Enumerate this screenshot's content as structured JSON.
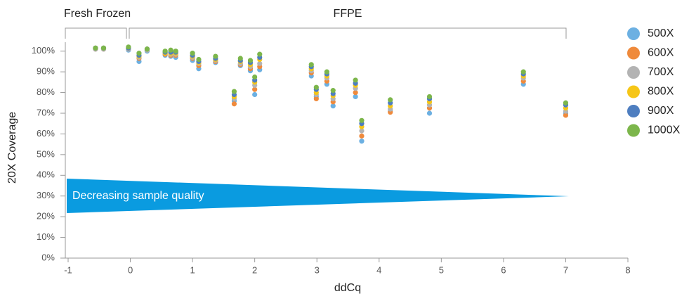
{
  "chart_data": {
    "type": "scatter",
    "xlabel": "ddCq",
    "ylabel": "20X Coverage",
    "annotations": [
      "Fresh Frozen",
      "FFPE",
      "Decreasing sample quality"
    ],
    "x": [
      -0.56,
      -0.43,
      -0.03,
      0.14,
      0.27,
      0.56,
      0.65,
      0.73,
      1.0,
      1.1,
      1.37,
      1.67,
      1.77,
      1.93,
      2.0,
      2.08,
      2.91,
      2.99,
      3.16,
      3.26,
      3.62,
      3.72,
      4.18,
      4.81,
      6.32,
      7.0
    ],
    "series": [
      {
        "name": "500X",
        "color": "#6cb0e2",
        "values": [
          101,
          101,
          100.5,
          95,
          100,
          98,
          97.5,
          97,
          95.5,
          91.5,
          94.5,
          76,
          93,
          90.5,
          79,
          91,
          88,
          78,
          84,
          73.5,
          78,
          56.5,
          71,
          70,
          84,
          70
        ]
      },
      {
        "name": "600X",
        "color": "#ef8a3c",
        "values": [
          101,
          101,
          101,
          96.5,
          100.5,
          98.5,
          98,
          98,
          96.5,
          93,
          95,
          74.5,
          93.5,
          91.5,
          81.5,
          92.5,
          89.5,
          77,
          85.5,
          75.5,
          80,
          59,
          70.5,
          72.5,
          85.5,
          69
        ]
      },
      {
        "name": "700X",
        "color": "#b3b3b3",
        "values": [
          101,
          101,
          101,
          97,
          100.5,
          99,
          98.5,
          98.5,
          97,
          94,
          95.5,
          77,
          94,
          92.5,
          83.5,
          94,
          90.5,
          79,
          87,
          77,
          82,
          61.5,
          72,
          74,
          87,
          71
        ]
      },
      {
        "name": "800X",
        "color": "#f6c617",
        "values": [
          101.5,
          101.5,
          101.5,
          97.5,
          101,
          99,
          99,
          99,
          97.5,
          94.5,
          96,
          78,
          95,
          93.5,
          85,
          96,
          91.5,
          80,
          88,
          78.5,
          83.5,
          63.5,
          73.5,
          75.5,
          88,
          72.5
        ]
      },
      {
        "name": "900X",
        "color": "#4e7ec0",
        "values": [
          101.5,
          101.5,
          101.5,
          98,
          101,
          99.5,
          99.5,
          99.5,
          98,
          95,
          96.5,
          79,
          95.5,
          94.5,
          86,
          97,
          92.5,
          81.5,
          89,
          79.5,
          84.5,
          65,
          75,
          77,
          89,
          74
        ]
      },
      {
        "name": "1000X",
        "color": "#7cb64b",
        "values": [
          101.5,
          101.5,
          102,
          99,
          101,
          100,
          100.5,
          100,
          99,
          96,
          97.5,
          80.5,
          96.5,
          95.5,
          87.5,
          98.5,
          93.5,
          82.5,
          90,
          81,
          86,
          66.5,
          76.5,
          78,
          90,
          75
        ]
      }
    ],
    "xlim": [
      -1,
      8
    ],
    "xticks": [
      -1,
      0,
      1,
      2,
      3,
      4,
      5,
      6,
      7,
      8
    ],
    "ylim": [
      0,
      105
    ],
    "yticks": [
      {
        "value": 0,
        "label": "0%"
      },
      {
        "value": 10,
        "label": "10%"
      },
      {
        "value": 20,
        "label": "20%"
      },
      {
        "value": 30,
        "label": "30%"
      },
      {
        "value": 40,
        "label": "40%"
      },
      {
        "value": 50,
        "label": "50%"
      },
      {
        "value": 60,
        "label": "60%"
      },
      {
        "value": 70,
        "label": "70%"
      },
      {
        "value": 80,
        "label": "80%"
      },
      {
        "value": 90,
        "label": "90%"
      },
      {
        "value": 100,
        "label": "100%"
      }
    ]
  }
}
